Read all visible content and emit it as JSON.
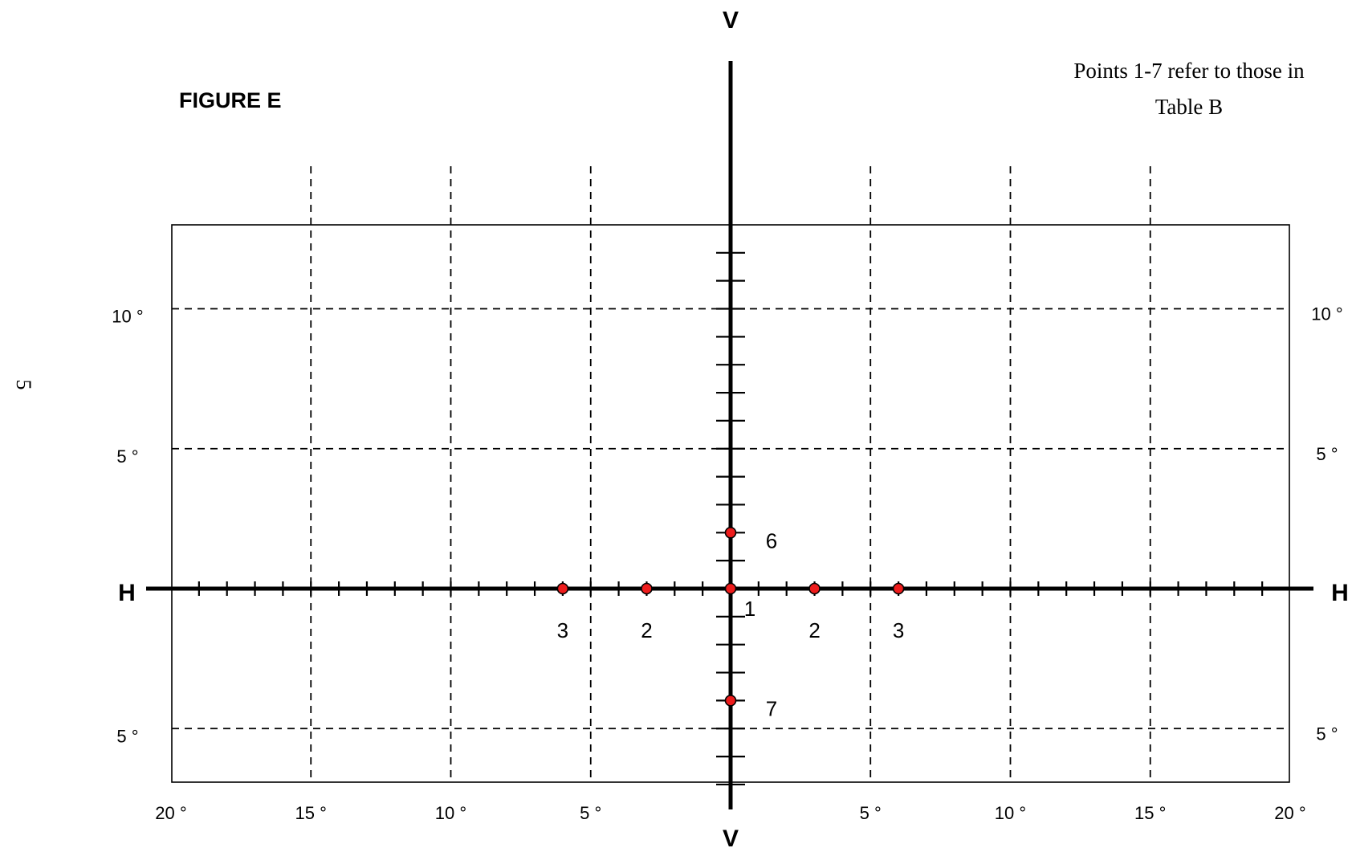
{
  "figure_title": "FIGURE E",
  "note_lines": [
    "Points 1-7 refer to those in",
    "Table B"
  ],
  "side_mark": "5",
  "axis_labels": {
    "v_top": "V",
    "v_bottom": "V",
    "h_left": "H",
    "h_right": "H"
  },
  "colors": {
    "point_fill": "#ee1c1c",
    "line": "#000000",
    "background": "#ffffff"
  },
  "chart_data": {
    "type": "scatter",
    "title": "FIGURE E",
    "units": "degrees",
    "xlim": [
      -20,
      20
    ],
    "ylim": [
      -7,
      13
    ],
    "grid": true,
    "grid_style": "dashed",
    "x_gridlines": [
      -15,
      -10,
      -5,
      5,
      10,
      15
    ],
    "y_gridlines": [
      10,
      5,
      -5
    ],
    "h_ticks_step": 1,
    "v_ticks_range": [
      -7,
      12
    ],
    "x_tick_labels": [
      {
        "x": -20,
        "label": "20 °"
      },
      {
        "x": -15,
        "label": "15 °"
      },
      {
        "x": -10,
        "label": "10 °"
      },
      {
        "x": -5,
        "label": "5 °"
      },
      {
        "x": 5,
        "label": "5 °"
      },
      {
        "x": 10,
        "label": "10 °"
      },
      {
        "x": 15,
        "label": "15 °"
      },
      {
        "x": 20,
        "label": "20 °"
      }
    ],
    "y_tick_labels": [
      {
        "y": 10,
        "label": "10 °"
      },
      {
        "y": 5,
        "label": "5 °"
      },
      {
        "y": -5,
        "label": "5 °"
      }
    ],
    "points": [
      {
        "label": "1",
        "x": 0,
        "y": 0,
        "label_pos": "below-right"
      },
      {
        "label": "2",
        "x": -3,
        "y": 0,
        "label_pos": "below"
      },
      {
        "label": "2",
        "x": 3,
        "y": 0,
        "label_pos": "below"
      },
      {
        "label": "3",
        "x": -6,
        "y": 0,
        "label_pos": "below"
      },
      {
        "label": "3",
        "x": 6,
        "y": 0,
        "label_pos": "below"
      },
      {
        "label": "6",
        "x": 0,
        "y": 2,
        "label_pos": "right"
      },
      {
        "label": "7",
        "x": 0,
        "y": -4,
        "label_pos": "right"
      }
    ]
  }
}
